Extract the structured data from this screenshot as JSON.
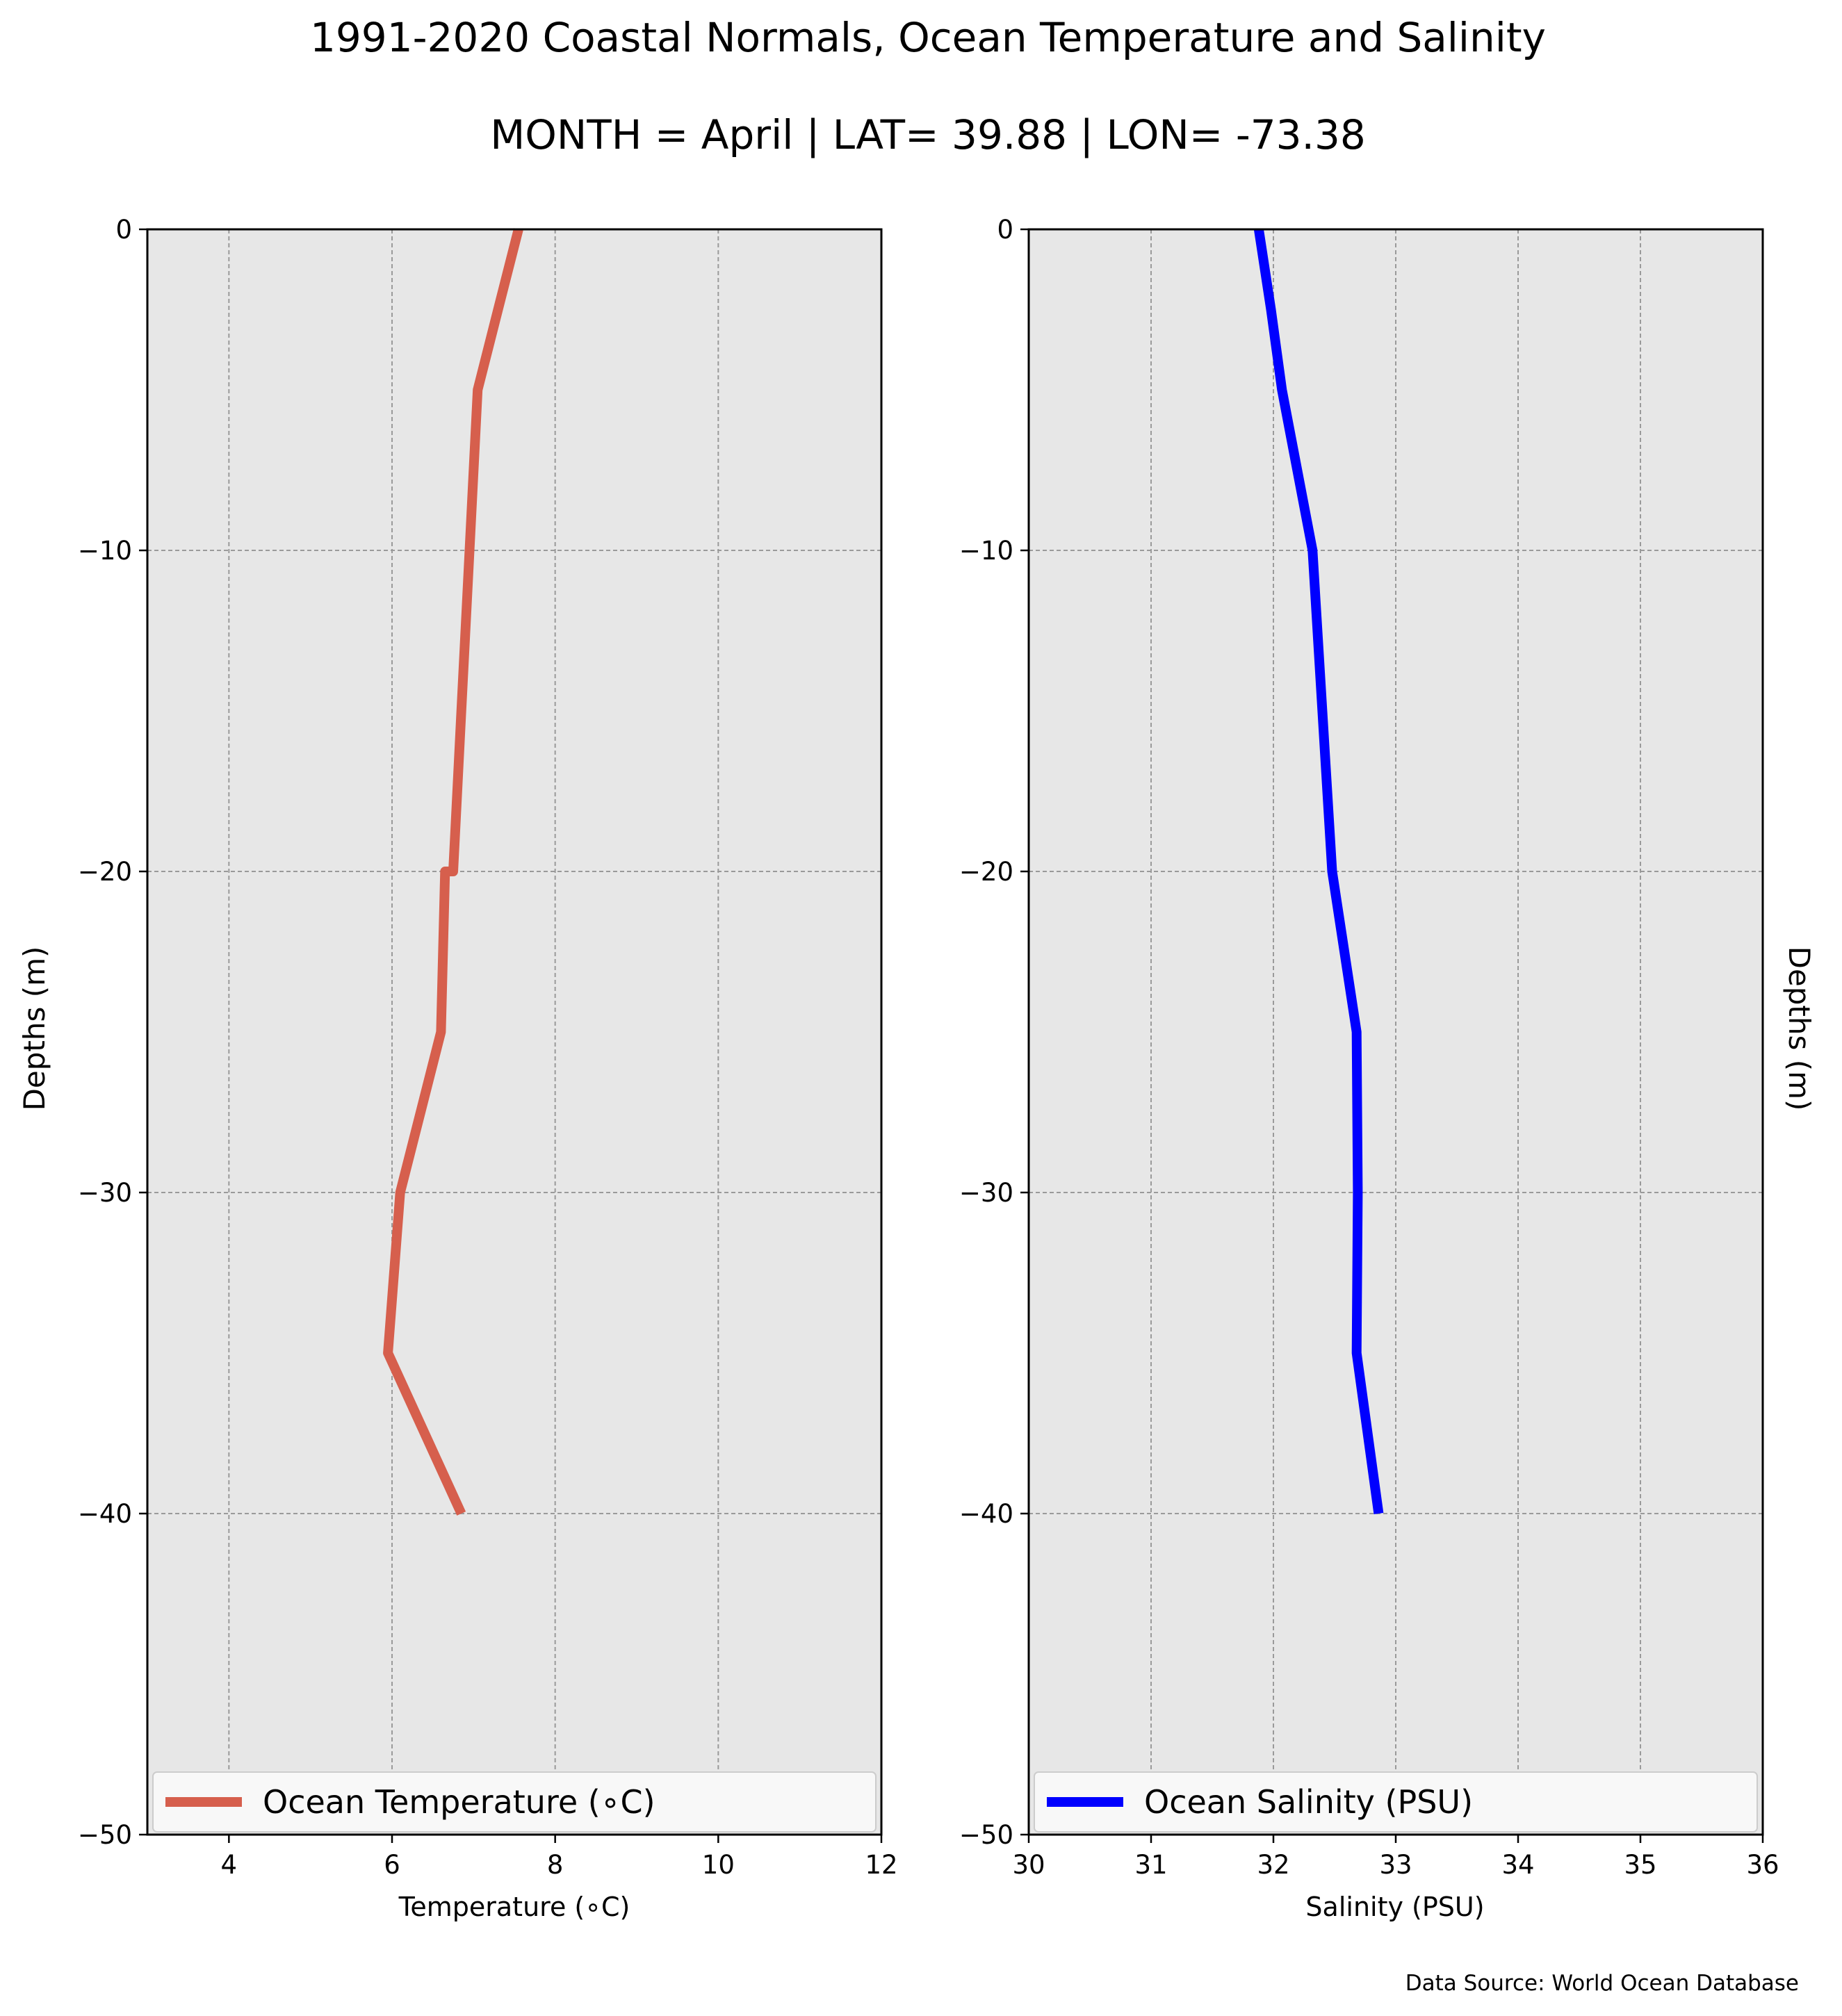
{
  "title": "1991-2020 Coastal Normals, Ocean Temperature and Salinity",
  "subtitle": "MONTH = April | LAT= 39.88 | LON= -73.38",
  "source_note": "Data Source: World Ocean Database",
  "colors": {
    "temperature": "#d65f4d",
    "salinity": "#0000ff",
    "plot_bg": "#e7e7e7",
    "grid": "#9a9a9a"
  },
  "chart_data": [
    {
      "type": "line",
      "xlabel": "Temperature ($^\\circ$C)",
      "xlabel_display": "Temperature (∘C)",
      "ylabel": "Depths (m)",
      "xlim": [
        3,
        12
      ],
      "ylim": [
        -50,
        0
      ],
      "xticks": [
        4,
        6,
        8,
        10,
        12
      ],
      "yticks": [
        0,
        -10,
        -20,
        -30,
        -40,
        -50
      ],
      "legend": "lower center",
      "grid": true,
      "series": [
        {
          "name": "Ocean Temperature (∘C)",
          "x": [
            7.55,
            7.3,
            7.05,
            6.95,
            6.85,
            6.75,
            6.65,
            6.6,
            6.1,
            5.95,
            6.85
          ],
          "y": [
            0,
            -2.5,
            -5,
            -10,
            -15,
            -20,
            -20,
            -25,
            -30,
            -35,
            -40
          ]
        }
      ]
    },
    {
      "type": "line",
      "xlabel": "Salinity (PSU)",
      "ylabel": "Depths (m)",
      "xlim": [
        30,
        36
      ],
      "ylim": [
        -50,
        0
      ],
      "xticks": [
        30,
        31,
        32,
        33,
        34,
        35,
        36
      ],
      "yticks": [
        0,
        -10,
        -20,
        -30,
        -40,
        -50
      ],
      "legend": "lower center",
      "grid": true,
      "series": [
        {
          "name": "Ocean Salinity (PSU)",
          "x": [
            31.88,
            31.98,
            32.07,
            32.32,
            32.4,
            32.48,
            32.68,
            32.69,
            32.68,
            32.86
          ],
          "y": [
            0,
            -2.5,
            -5,
            -10,
            -15,
            -20,
            -25,
            -30,
            -35,
            -40
          ]
        }
      ]
    }
  ]
}
